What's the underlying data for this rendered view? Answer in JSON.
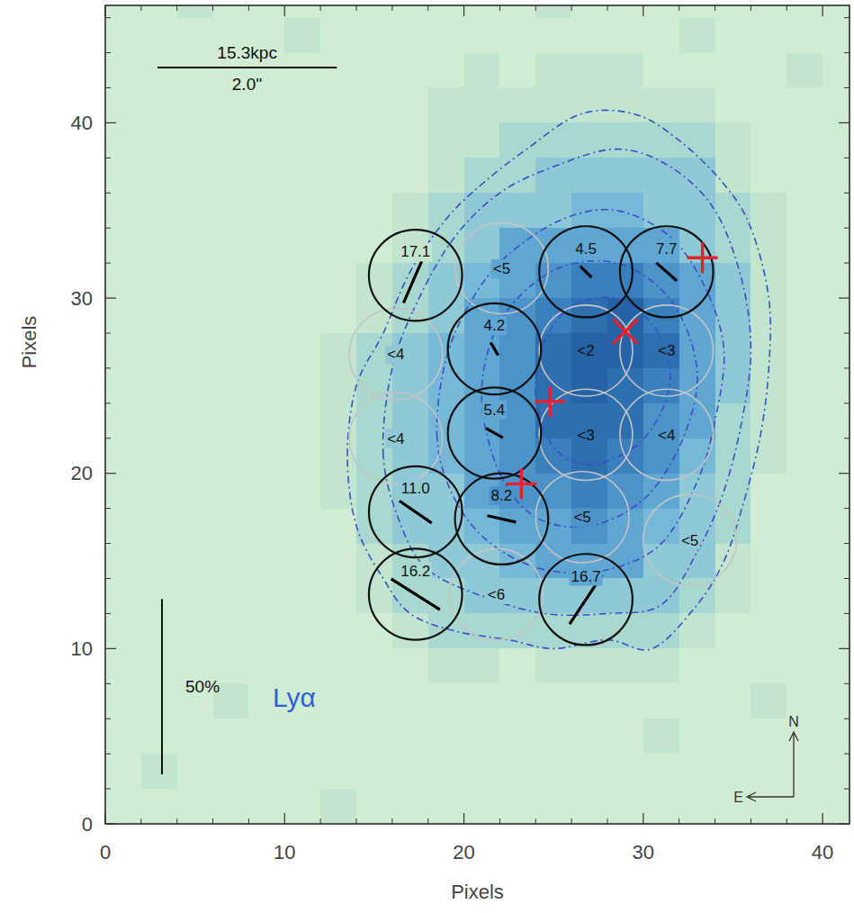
{
  "chart_data": {
    "type": "polarization_map",
    "x_label": "Pixels",
    "y_label": "Pixels",
    "xlim": [
      0,
      41.5
    ],
    "ylim": [
      0,
      46.7
    ],
    "xticks": [
      0,
      10,
      20,
      30,
      40
    ],
    "yticks": [
      0,
      10,
      20,
      30,
      40
    ],
    "image": {
      "x_edges": [
        0,
        2,
        4,
        6,
        8,
        10,
        12,
        14,
        16,
        18,
        20,
        22,
        24,
        26,
        28,
        30,
        32,
        34,
        36,
        38,
        40,
        42
      ],
      "y_edges": [
        48,
        46,
        44,
        42,
        40,
        38,
        36,
        34,
        32,
        30,
        28,
        26,
        24,
        22,
        20,
        18,
        16,
        14,
        12,
        10,
        8,
        6,
        4,
        2,
        0
      ],
      "color_range": [
        0,
        9
      ],
      "cells": [
        [
          0,
          0,
          1,
          0,
          0,
          0,
          0,
          0,
          0,
          0,
          0,
          0,
          1,
          0,
          0,
          0,
          0,
          0,
          0,
          0,
          0
        ],
        [
          0,
          0,
          0,
          0,
          0,
          1,
          0,
          0,
          0,
          0,
          0,
          0,
          0,
          0,
          0,
          0,
          1,
          0,
          0,
          0,
          0
        ],
        [
          0,
          0,
          0,
          0,
          0,
          0,
          0,
          0,
          0,
          0,
          1,
          0,
          1,
          1,
          1,
          0,
          0,
          0,
          0,
          1,
          0
        ],
        [
          0,
          0,
          0,
          0,
          0,
          0,
          0,
          0,
          0,
          1,
          1,
          1,
          1,
          1,
          1,
          1,
          1,
          0,
          0,
          0,
          0
        ],
        [
          0,
          0,
          0,
          0,
          0,
          0,
          0,
          0,
          0,
          1,
          1,
          2,
          2,
          2,
          2,
          2,
          2,
          1,
          0,
          0,
          0
        ],
        [
          0,
          0,
          0,
          0,
          0,
          0,
          0,
          0,
          0,
          1,
          2,
          2,
          3,
          3,
          3,
          3,
          3,
          1,
          0,
          0,
          0
        ],
        [
          0,
          0,
          0,
          0,
          0,
          0,
          0,
          0,
          1,
          2,
          3,
          3,
          3,
          4,
          4,
          3,
          3,
          2,
          1,
          0,
          0
        ],
        [
          0,
          0,
          0,
          0,
          0,
          0,
          0,
          0,
          1,
          2,
          3,
          5,
          5,
          5,
          5,
          5,
          3,
          2,
          1,
          0,
          0
        ],
        [
          0,
          0,
          0,
          0,
          0,
          0,
          0,
          1,
          2,
          3,
          4,
          5,
          6,
          7,
          7,
          6,
          5,
          3,
          1,
          0,
          0
        ],
        [
          0,
          0,
          0,
          0,
          0,
          0,
          0,
          1,
          2,
          3,
          5,
          6,
          7,
          8,
          9,
          7,
          5,
          3,
          1,
          0,
          0
        ],
        [
          0,
          0,
          0,
          0,
          0,
          0,
          1,
          2,
          3,
          4,
          5,
          6,
          8,
          9,
          9,
          8,
          5,
          3,
          1,
          0,
          0
        ],
        [
          0,
          0,
          0,
          0,
          0,
          0,
          1,
          2,
          3,
          4,
          5,
          6,
          8,
          9,
          8,
          7,
          5,
          3,
          1,
          0,
          0
        ],
        [
          0,
          0,
          0,
          0,
          0,
          0,
          1,
          2,
          3,
          4,
          5,
          6,
          8,
          8,
          8,
          6,
          5,
          2,
          1,
          0,
          0
        ],
        [
          0,
          0,
          0,
          0,
          0,
          0,
          1,
          2,
          3,
          4,
          5,
          6,
          7,
          8,
          7,
          6,
          4,
          2,
          1,
          0,
          0
        ],
        [
          0,
          0,
          0,
          0,
          0,
          0,
          1,
          2,
          3,
          3,
          5,
          6,
          6,
          7,
          6,
          5,
          3,
          2,
          0,
          0,
          0
        ],
        [
          0,
          0,
          0,
          0,
          0,
          0,
          0,
          2,
          3,
          3,
          4,
          5,
          5,
          6,
          5,
          4,
          3,
          2,
          0,
          0,
          0
        ],
        [
          0,
          0,
          0,
          0,
          0,
          0,
          0,
          1,
          2,
          3,
          3,
          4,
          5,
          5,
          5,
          3,
          3,
          1,
          0,
          0,
          0
        ],
        [
          0,
          0,
          0,
          0,
          0,
          0,
          0,
          1,
          2,
          2,
          3,
          3,
          3,
          3,
          3,
          3,
          2,
          1,
          0,
          0,
          0
        ],
        [
          0,
          0,
          0,
          0,
          0,
          0,
          0,
          0,
          1,
          2,
          2,
          2,
          2,
          2,
          2,
          2,
          1,
          0,
          0,
          0,
          0
        ],
        [
          0,
          0,
          0,
          0,
          0,
          0,
          0,
          0,
          0,
          1,
          1,
          0,
          1,
          1,
          1,
          1,
          0,
          0,
          0,
          0,
          0
        ],
        [
          0,
          0,
          0,
          1,
          0,
          0,
          0,
          0,
          0,
          0,
          0,
          0,
          0,
          0,
          0,
          0,
          0,
          0,
          1,
          0,
          0
        ],
        [
          0,
          0,
          0,
          0,
          0,
          0,
          0,
          0,
          0,
          0,
          0,
          0,
          0,
          0,
          0,
          1,
          0,
          0,
          0,
          0,
          0
        ],
        [
          0,
          1,
          0,
          0,
          0,
          0,
          0,
          0,
          0,
          0,
          0,
          0,
          0,
          0,
          0,
          0,
          0,
          0,
          0,
          0,
          0
        ],
        [
          0,
          0,
          0,
          0,
          0,
          0,
          1,
          0,
          0,
          0,
          0,
          0,
          0,
          0,
          0,
          0,
          0,
          0,
          0,
          0,
          0
        ]
      ]
    },
    "contours": [
      {
        "x": [
          13.5,
          14,
          15.5,
          17,
          19,
          21,
          23.5,
          26.5,
          29.5,
          32,
          34.5,
          36,
          37,
          37,
          36.5,
          35.5,
          34.5,
          33,
          30.5,
          28,
          25,
          22.5,
          19.5,
          17,
          15.5,
          14
        ],
        "y": [
          21,
          25,
          28,
          31.5,
          34.5,
          36.5,
          38.5,
          40.5,
          40.5,
          39,
          36.5,
          34,
          30,
          26,
          22,
          18,
          15,
          12.5,
          10,
          10.5,
          10,
          10.5,
          11,
          12,
          14,
          17
        ]
      },
      {
        "x": [
          15.5,
          16,
          17.5,
          19.5,
          22,
          25,
          28.5,
          31.5,
          34,
          35.5,
          36,
          35.5,
          34.5,
          33,
          31,
          28,
          24.5,
          21,
          18,
          16.5
        ],
        "y": [
          21,
          26,
          30,
          33.5,
          36,
          37.5,
          38.5,
          37.5,
          35,
          31,
          27,
          23,
          19,
          15.5,
          12.5,
          12,
          12,
          13,
          14.5,
          17
        ]
      },
      {
        "x": [
          18.5,
          19,
          20.5,
          22.5,
          25.5,
          28.5,
          31.5,
          33.5,
          34.5,
          34,
          33,
          31,
          28,
          24.5,
          21.5,
          19.5
        ],
        "y": [
          22,
          26.5,
          30,
          32.5,
          34.5,
          35,
          33.5,
          30.5,
          27,
          23,
          19.5,
          16,
          14.5,
          14.5,
          16,
          18.5
        ]
      },
      {
        "x": [
          21,
          21.5,
          23,
          25.5,
          28.5,
          31,
          32.5,
          33,
          32,
          30,
          27,
          24,
          22
        ],
        "y": [
          24,
          27.5,
          30,
          31.8,
          32,
          30.5,
          28,
          25,
          21.5,
          18.5,
          17,
          17.5,
          20
        ]
      },
      {
        "x": [
          24,
          24.5,
          26,
          28.5,
          30.5,
          31.5,
          31,
          29.5,
          27,
          25
        ],
        "y": [
          24.5,
          27.5,
          29.5,
          30,
          28.5,
          26,
          23.5,
          21.5,
          20.5,
          21.5
        ]
      }
    ],
    "apertures": [
      {
        "x": 17.3,
        "y": 31.3,
        "p": 17.1,
        "label": "17.1",
        "pa": 157
      },
      {
        "x": 26.8,
        "y": 31.5,
        "p": 4.5,
        "label": "4.5",
        "pa": 45
      },
      {
        "x": 31.3,
        "y": 31.5,
        "p": 7.7,
        "label": "7.7",
        "pa": 48
      },
      {
        "x": 21.7,
        "y": 27.1,
        "p": 4.2,
        "label": "4.2",
        "pa": 30
      },
      {
        "x": 21.7,
        "y": 22.3,
        "p": 5.4,
        "label": "5.4",
        "pa": 60
      },
      {
        "x": 17.3,
        "y": 17.8,
        "p": 11.0,
        "label": "11.0",
        "pa": 55
      },
      {
        "x": 22.1,
        "y": 17.4,
        "p": 8.2,
        "label": "8.2",
        "pa": 77
      },
      {
        "x": 17.3,
        "y": 13.1,
        "p": 16.2,
        "label": "16.2",
        "pa": 57
      },
      {
        "x": 26.8,
        "y": 12.8,
        "p": 16.7,
        "label": "16.7",
        "pa": 147
      }
    ],
    "limits": [
      {
        "x": 22.1,
        "y": 31.7,
        "p_limit": 5,
        "label": "<5"
      },
      {
        "x": 16.2,
        "y": 26.8,
        "p_limit": 4,
        "label": "<4"
      },
      {
        "x": 26.8,
        "y": 27.0,
        "p_limit": 2,
        "label": "<2"
      },
      {
        "x": 31.3,
        "y": 27.0,
        "p_limit": 3,
        "label": "<3"
      },
      {
        "x": 16.2,
        "y": 22.0,
        "p_limit": 4,
        "label": "<4"
      },
      {
        "x": 26.8,
        "y": 22.2,
        "p_limit": 3,
        "label": "<3"
      },
      {
        "x": 31.3,
        "y": 22.2,
        "p_limit": 4,
        "label": "<4"
      },
      {
        "x": 26.6,
        "y": 17.5,
        "p_limit": 5,
        "label": "<5"
      },
      {
        "x": 21.8,
        "y": 13.1,
        "p_limit": 6,
        "label": "<6"
      },
      {
        "x": 32.6,
        "y": 16.2,
        "p_limit": 5,
        "label": "<5"
      }
    ],
    "sources": [
      {
        "x": 33.3,
        "y": 32.3,
        "marker": "plus"
      },
      {
        "x": 29.0,
        "y": 28.1,
        "marker": "cross"
      },
      {
        "x": 24.8,
        "y": 24.1,
        "marker": "plus"
      },
      {
        "x": 23.2,
        "y": 19.4,
        "marker": "plus"
      }
    ],
    "scale_bar": {
      "length": 10,
      "labels": [
        "15.3kpc",
        "2.0''"
      ]
    },
    "pol_scale": {
      "value": 50,
      "label": "50%",
      "length": 10
    },
    "annotation": "Lyα",
    "compass": {
      "north": "N",
      "east": "E"
    }
  }
}
